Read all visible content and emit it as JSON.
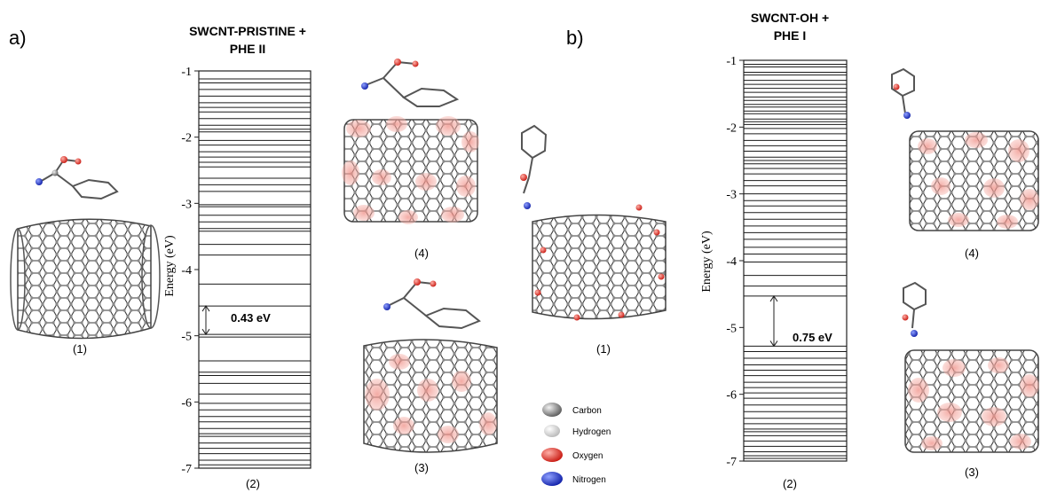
{
  "panels": [
    {
      "letter": "a)",
      "title_line1": "SWCNT-PRISTINE +",
      "title_line2": "PHE II",
      "ylabel": "Energy (eV)",
      "gap_label": "0.43 eV",
      "labels": {
        "structure": "(1)",
        "levels": "(2)",
        "orbital_top": "(4)",
        "orbital_bottom": "(3)"
      },
      "chart_data": {
        "type": "energy-level",
        "ylabel": "Energy (eV)",
        "ylim": [
          -7,
          -1
        ],
        "yticks": [
          -1,
          -2,
          -3,
          -4,
          -5,
          -6,
          -7
        ],
        "tick_labels": [
          "-1",
          "-2",
          "-3",
          "-4",
          "-5",
          "-6",
          "-7"
        ],
        "gap": {
          "value_eV": 0.43,
          "lower_eV": -4.98,
          "upper_eV": -4.55
        },
        "levels": [
          -1.12,
          -1.18,
          -1.28,
          -1.38,
          -1.48,
          -1.55,
          -1.62,
          -1.72,
          -1.82,
          -1.88,
          -1.92,
          -2.05,
          -2.12,
          -2.22,
          -2.3,
          -2.38,
          -2.45,
          -2.62,
          -2.72,
          -2.82,
          -3.02,
          -3.05,
          -3.18,
          -3.28,
          -3.38,
          -3.42,
          -3.62,
          -3.78,
          -4.22,
          -4.55,
          -4.98,
          -5.02,
          -5.38,
          -5.55,
          -5.6,
          -5.72,
          -5.88,
          -6.02,
          -6.12,
          -6.22,
          -6.3,
          -6.4,
          -6.48,
          -6.52,
          -6.62,
          -6.7,
          -6.78,
          -6.88,
          -6.95
        ]
      }
    },
    {
      "letter": "b)",
      "title_line1": "SWCNT-OH +",
      "title_line2": "PHE I",
      "ylabel": "Energy (eV)",
      "gap_label": "0.75 eV",
      "labels": {
        "structure": "(1)",
        "levels": "(2)",
        "orbital_top": "(4)",
        "orbital_bottom": "(3)"
      },
      "chart_data": {
        "type": "energy-level",
        "ylabel": "Energy (eV)",
        "ylim": [
          -7,
          -1
        ],
        "yticks": [
          -1,
          -2,
          -3,
          -4,
          -5,
          -6,
          -7
        ],
        "tick_labels": [
          "-1",
          "-2",
          "-3",
          "-4",
          "-5",
          "-6",
          "-7"
        ],
        "gap": {
          "value_eV": 0.75,
          "lower_eV": -5.28,
          "upper_eV": -4.53
        },
        "levels": [
          -1.06,
          -1.1,
          -1.18,
          -1.22,
          -1.3,
          -1.36,
          -1.42,
          -1.48,
          -1.55,
          -1.6,
          -1.66,
          -1.7,
          -1.76,
          -1.8,
          -1.88,
          -1.92,
          -1.96,
          -2.02,
          -2.1,
          -2.2,
          -2.28,
          -2.36,
          -2.45,
          -2.5,
          -2.55,
          -2.62,
          -2.7,
          -2.8,
          -2.88,
          -3.0,
          -3.1,
          -3.18,
          -3.28,
          -3.38,
          -3.48,
          -3.58,
          -3.68,
          -3.8,
          -3.9,
          -4.02,
          -4.22,
          -4.38,
          -4.53,
          -5.28,
          -5.36,
          -5.46,
          -5.56,
          -5.64,
          -5.72,
          -5.82,
          -5.9,
          -5.98,
          -6.06,
          -6.16,
          -6.26,
          -6.36,
          -6.44,
          -6.52,
          -6.56,
          -6.62,
          -6.7,
          -6.78,
          -6.86,
          -6.92,
          -6.96
        ]
      }
    }
  ],
  "legend": {
    "items": [
      {
        "label": "Carbon",
        "color": "#7a7a7a"
      },
      {
        "label": "Hydrogen",
        "color": "#d4d4d4"
      },
      {
        "label": "Oxygen",
        "color": "#e0201a"
      },
      {
        "label": "Nitrogen",
        "color": "#1a2fc8"
      }
    ]
  }
}
